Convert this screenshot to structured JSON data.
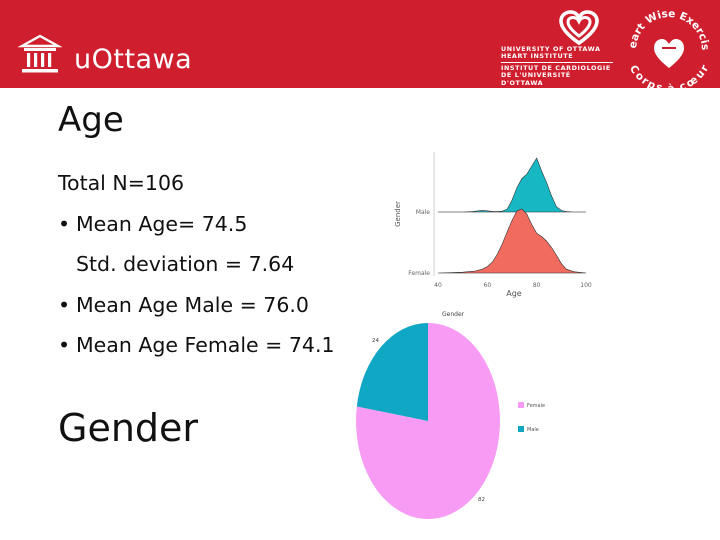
{
  "header": {
    "university": "uOttawa",
    "institute_en_1": "UNIVERSITY OF OTTAWA",
    "institute_en_2": "HEART INSTITUTE",
    "institute_fr_1": "INSTITUT DE CARDIOLOGIE",
    "institute_fr_2": "DE L'UNIVERSITÉ D'OTTAWA",
    "badge_top": "Heart Wise Exercise",
    "badge_bottom": "Corps à cœur",
    "colors": {
      "brand_red": "#cf1f2e"
    }
  },
  "slide": {
    "age_heading": "Age",
    "gender_heading": "Gender",
    "total": "Total N=106",
    "bullet_1": "Mean Age= 74.5",
    "bullet_1_sub": "Std. deviation = 7.64",
    "bullet_2": "Mean Age Male = 76.0",
    "bullet_3": "Mean Age Female = 74.1"
  },
  "chart_data": [
    {
      "type": "area",
      "title": "",
      "xlabel": "Age",
      "ylabel": "Gender",
      "xlim": [
        40,
        100
      ],
      "x_ticks": [
        "40",
        "60",
        "80",
        "100"
      ],
      "categories": [
        "Male",
        "Female"
      ],
      "series": [
        {
          "name": "Male",
          "color": "#17b7c4",
          "x": [
            40,
            45,
            50,
            52,
            54,
            56,
            58,
            60,
            62,
            64,
            66,
            68,
            70,
            72,
            74,
            76,
            78,
            80,
            82,
            84,
            86,
            88,
            90,
            92,
            95,
            100
          ],
          "density": [
            0,
            0,
            0,
            0.004,
            0.008,
            0.02,
            0.03,
            0.022,
            0.012,
            0.008,
            0.015,
            0.05,
            0.22,
            0.45,
            0.62,
            0.7,
            0.85,
            1.0,
            0.76,
            0.55,
            0.3,
            0.1,
            0.03,
            0.01,
            0,
            0
          ]
        },
        {
          "name": "Female",
          "color": "#f26b5f",
          "x": [
            40,
            45,
            50,
            55,
            58,
            60,
            62,
            64,
            66,
            68,
            70,
            72,
            74,
            76,
            78,
            80,
            82,
            84,
            86,
            88,
            90,
            92,
            95,
            100
          ],
          "density": [
            0,
            0.005,
            0.012,
            0.03,
            0.06,
            0.1,
            0.17,
            0.29,
            0.45,
            0.64,
            0.82,
            0.97,
            1.0,
            0.92,
            0.76,
            0.62,
            0.57,
            0.5,
            0.4,
            0.28,
            0.15,
            0.06,
            0.02,
            0
          ]
        }
      ]
    },
    {
      "type": "pie",
      "title": "Gender",
      "categories": [
        "Female",
        "Male"
      ],
      "values": [
        82,
        24
      ],
      "colors": [
        "#f89bf5",
        "#10a7c4"
      ],
      "labels": [
        "82",
        "24"
      ],
      "legend_placement": "right"
    }
  ]
}
